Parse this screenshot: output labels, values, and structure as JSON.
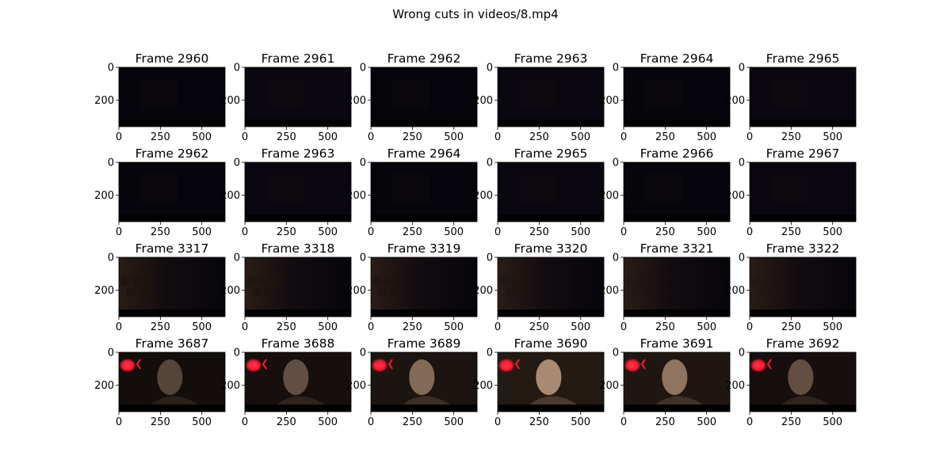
{
  "title": "Wrong cuts in videos/8.mp4",
  "colors": {
    "letterbox": "#000000",
    "frame_dark": "#06050b",
    "frame_dark2": "#0a0710",
    "scene2": "#150d0f",
    "scene3": "#1d1410",
    "red_light": "#ff1a33",
    "face": "#8a7060"
  },
  "chart_data": {
    "type": "image-grid",
    "rows": 4,
    "cols": 6,
    "x_ticks": [
      "0",
      "250",
      "500"
    ],
    "y_ticks": [
      "0",
      "200"
    ],
    "panels": [
      {
        "title": "Frame 2960",
        "scene": "dark"
      },
      {
        "title": "Frame 2961",
        "scene": "dark"
      },
      {
        "title": "Frame 2962",
        "scene": "dark"
      },
      {
        "title": "Frame 2963",
        "scene": "dark"
      },
      {
        "title": "Frame 2964",
        "scene": "dark"
      },
      {
        "title": "Frame 2965",
        "scene": "dark"
      },
      {
        "title": "Frame 2962",
        "scene": "dark"
      },
      {
        "title": "Frame 2963",
        "scene": "dark"
      },
      {
        "title": "Frame 2964",
        "scene": "dark"
      },
      {
        "title": "Frame 2965",
        "scene": "dark"
      },
      {
        "title": "Frame 2966",
        "scene": "dark"
      },
      {
        "title": "Frame 2967",
        "scene": "dark"
      },
      {
        "title": "Frame 3317",
        "scene": "room"
      },
      {
        "title": "Frame 3318",
        "scene": "room"
      },
      {
        "title": "Frame 3319",
        "scene": "room"
      },
      {
        "title": "Frame 3320",
        "scene": "room"
      },
      {
        "title": "Frame 3321",
        "scene": "room"
      },
      {
        "title": "Frame 3322",
        "scene": "room"
      },
      {
        "title": "Frame 3687",
        "scene": "face",
        "brightness": 0.35
      },
      {
        "title": "Frame 3688",
        "scene": "face",
        "brightness": 0.45
      },
      {
        "title": "Frame 3689",
        "scene": "face",
        "brightness": 0.7
      },
      {
        "title": "Frame 3690",
        "scene": "face",
        "brightness": 1.0
      },
      {
        "title": "Frame 3691",
        "scene": "face",
        "brightness": 0.8
      },
      {
        "title": "Frame 3692",
        "scene": "face",
        "brightness": 0.45
      }
    ]
  }
}
